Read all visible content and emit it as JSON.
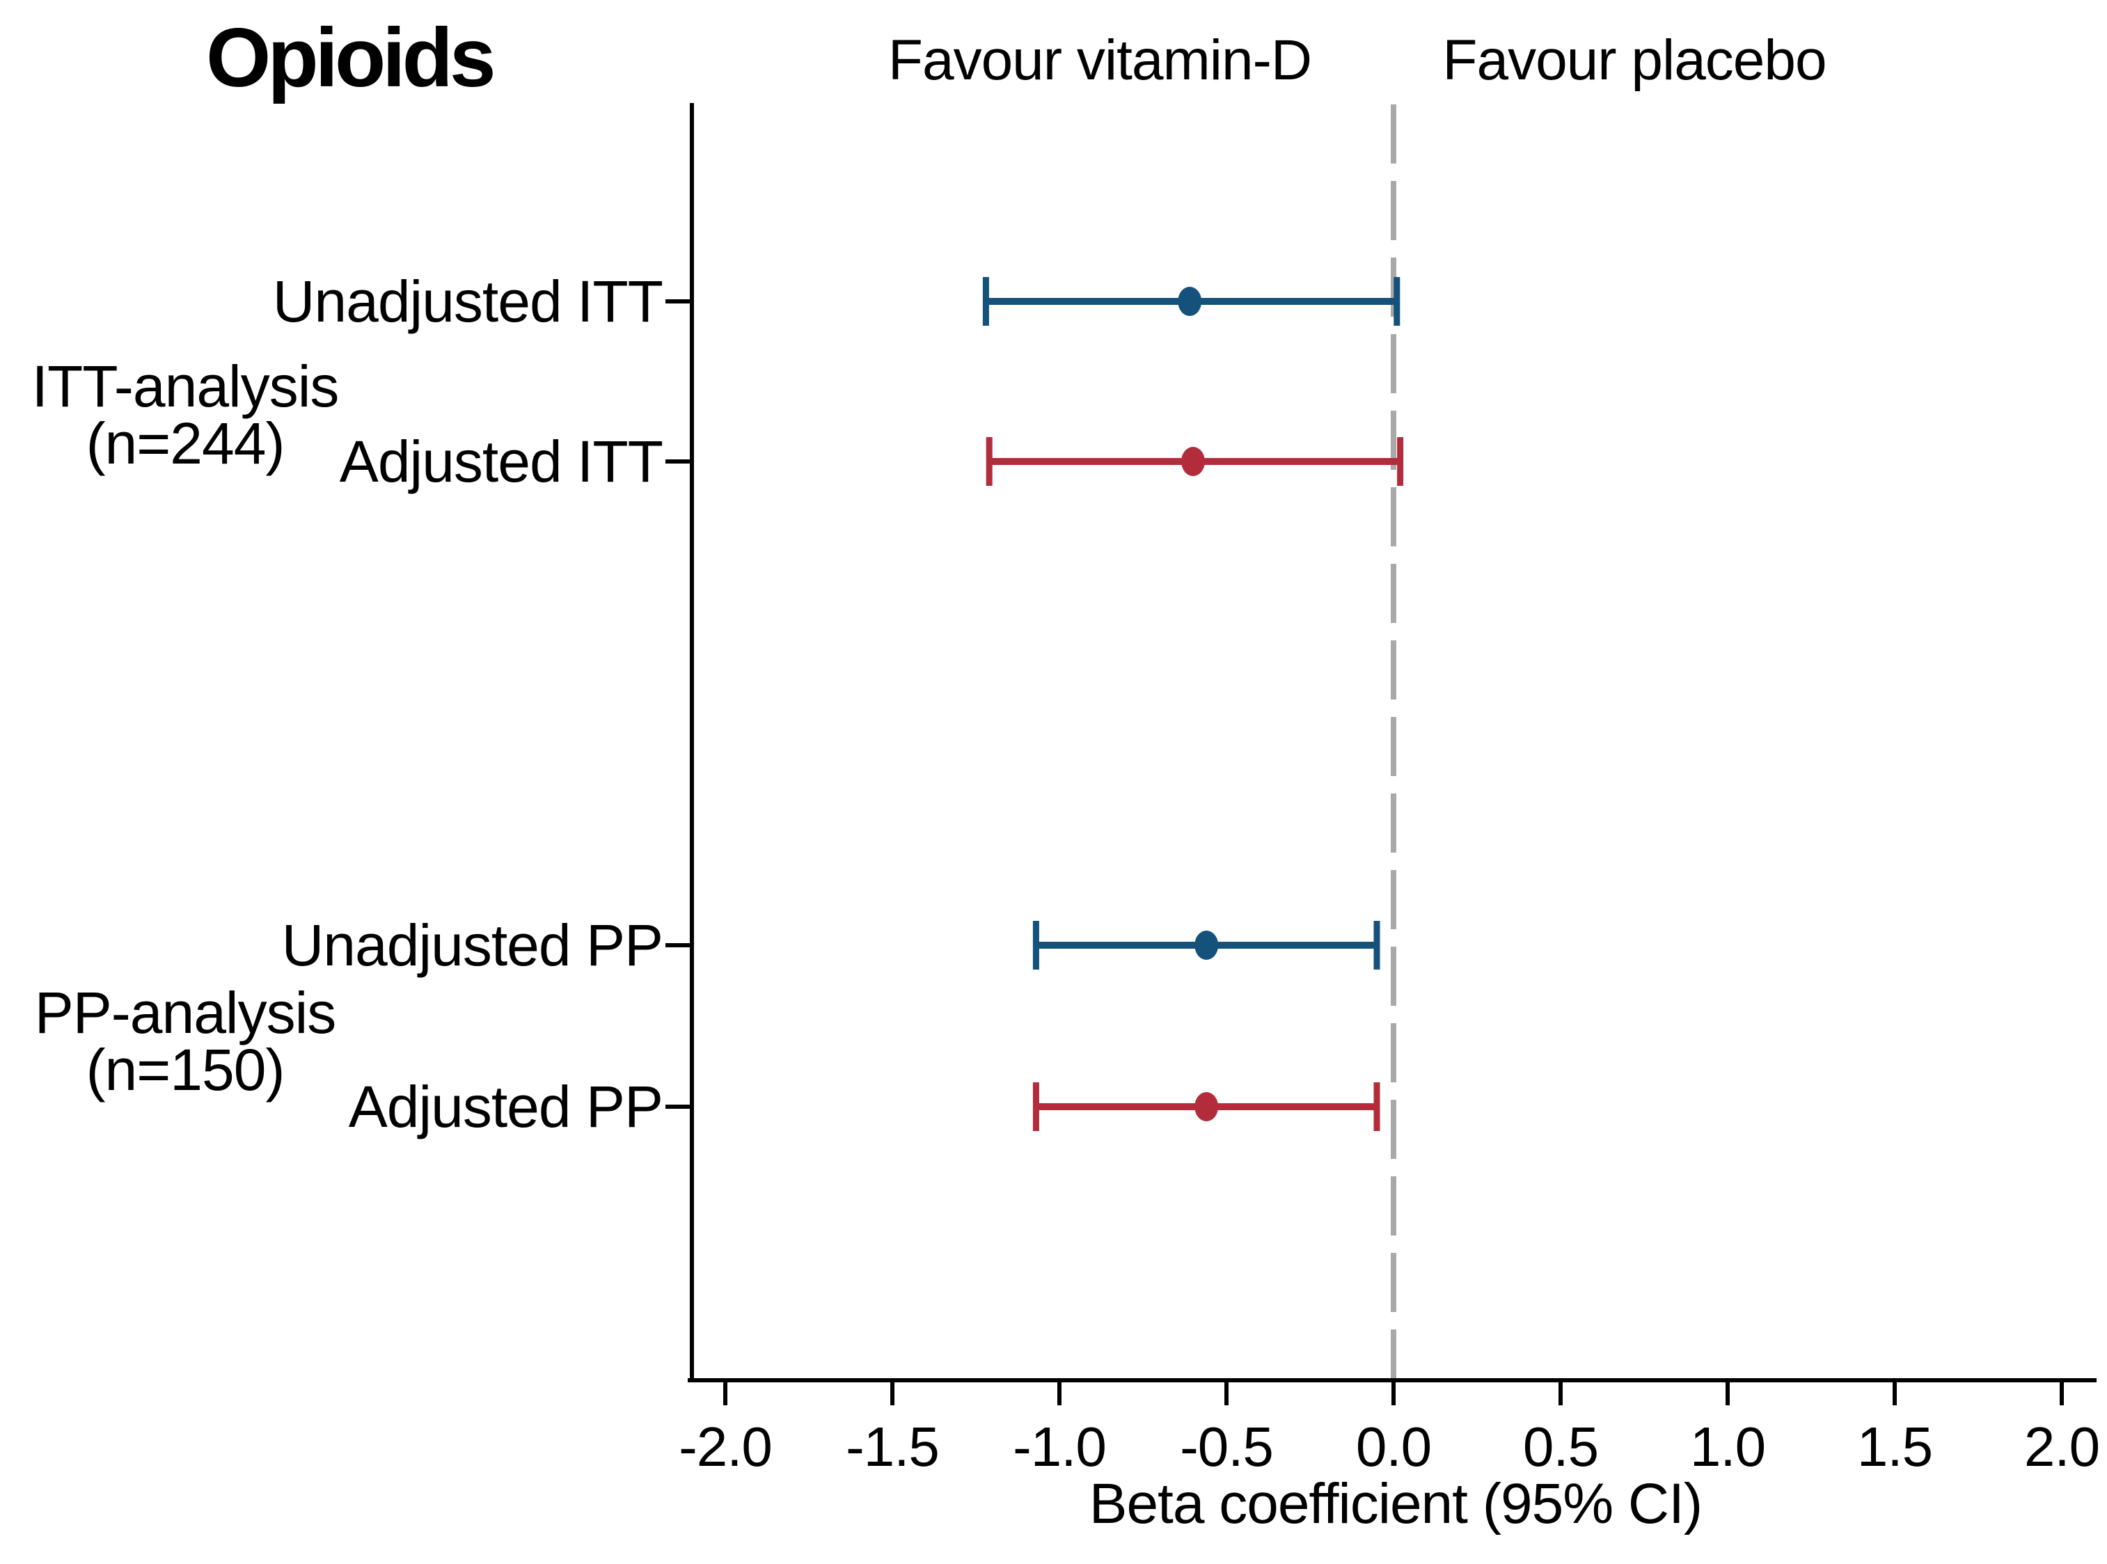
{
  "chart_data": {
    "type": "scatter",
    "subtype": "forest-plot",
    "title": "Opioids",
    "xlabel": "Beta coefficient (95% CI)",
    "annotations": {
      "left": "Favour vitamin-D",
      "right": "Favour placebo"
    },
    "x_axis": {
      "min": -2.0,
      "max": 2.0,
      "ticks": [
        -2.0,
        -1.5,
        -1.0,
        -0.5,
        0.0,
        0.5,
        1.0,
        1.5,
        2.0
      ],
      "tick_labels": [
        "-2.0",
        "-1.5",
        "-1.0",
        "-0.5",
        "0.0",
        "0.5",
        "1.0",
        "1.5",
        "2.0"
      ],
      "grid": false
    },
    "reference_line_x": 0.0,
    "legend": null,
    "groups": [
      {
        "label_line1": "ITT-analysis",
        "label_line2": "(n=244)"
      },
      {
        "label_line1": "PP-analysis",
        "label_line2": "(n=150)"
      }
    ],
    "rows": [
      {
        "label": "Unadjusted ITT",
        "group": 0,
        "series": "unadjusted",
        "beta": -0.61,
        "ci_low": -1.22,
        "ci_high": 0.01
      },
      {
        "label": "Adjusted ITT",
        "group": 0,
        "series": "adjusted",
        "beta": -0.6,
        "ci_low": -1.21,
        "ci_high": 0.02
      },
      {
        "label": "Unadjusted PP",
        "group": 1,
        "series": "unadjusted",
        "beta": -0.56,
        "ci_low": -1.07,
        "ci_high": -0.05
      },
      {
        "label": "Adjusted PP",
        "group": 1,
        "series": "adjusted",
        "beta": -0.56,
        "ci_low": -1.07,
        "ci_high": -0.05
      }
    ],
    "colors": {
      "unadjusted": "#14527b",
      "adjusted": "#b22c3c",
      "reference_line": "#a9a9a9",
      "axis": "#000000"
    }
  }
}
